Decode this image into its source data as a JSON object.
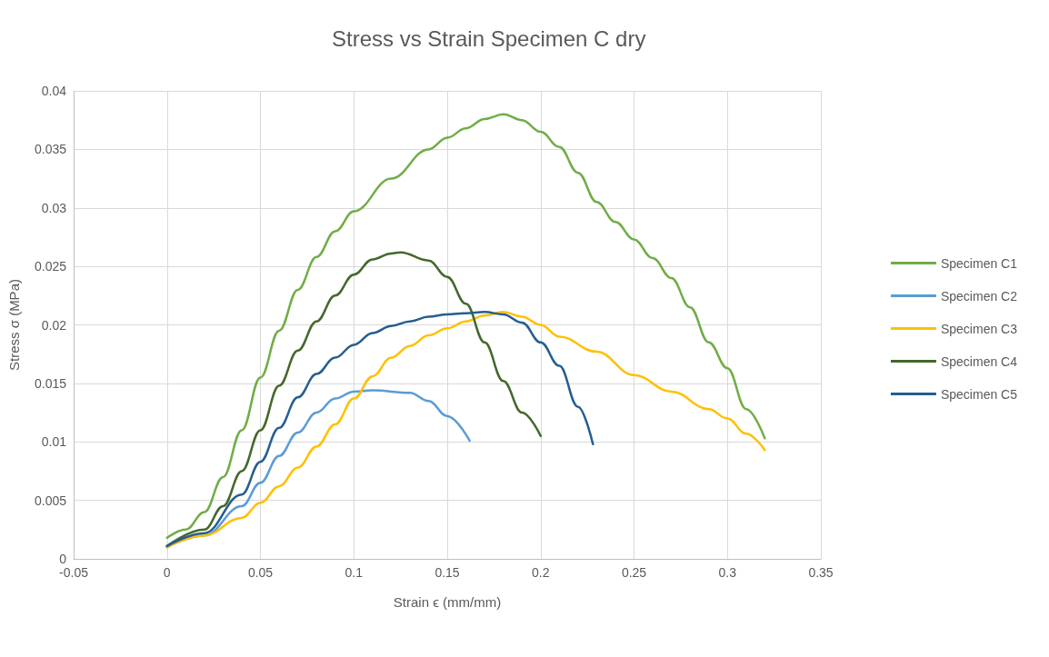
{
  "chart_data": {
    "type": "line",
    "title": "Stress vs Strain Specimen C dry",
    "xlabel": "Strain ϵ (mm/mm)",
    "ylabel": "Stress σ (MPa)",
    "xlim": [
      -0.05,
      0.35
    ],
    "xticks": [
      -0.05,
      0,
      0.05,
      0.1,
      0.15,
      0.2,
      0.25,
      0.3,
      0.35
    ],
    "ylim": [
      0,
      0.04
    ],
    "yticks": [
      0,
      0.005,
      0.01,
      0.015,
      0.02,
      0.025,
      0.03,
      0.035,
      0.04
    ],
    "grid": true,
    "legend": "right",
    "marker": "none",
    "line_style": "solid",
    "series": [
      {
        "name": "Specimen C1",
        "color": "#70ad47",
        "x": [
          0,
          0.01,
          0.02,
          0.03,
          0.04,
          0.05,
          0.06,
          0.07,
          0.08,
          0.09,
          0.1,
          0.12,
          0.14,
          0.15,
          0.16,
          0.17,
          0.18,
          0.19,
          0.2,
          0.21,
          0.22,
          0.23,
          0.24,
          0.25,
          0.26,
          0.27,
          0.28,
          0.29,
          0.3,
          0.31,
          0.32
        ],
        "values": [
          0.0018,
          0.0025,
          0.004,
          0.007,
          0.011,
          0.0155,
          0.0195,
          0.023,
          0.0258,
          0.028,
          0.0297,
          0.0325,
          0.035,
          0.036,
          0.0368,
          0.0376,
          0.038,
          0.0375,
          0.0365,
          0.0352,
          0.033,
          0.0305,
          0.0288,
          0.0273,
          0.0257,
          0.024,
          0.0215,
          0.0185,
          0.0163,
          0.0128,
          0.0103
        ]
      },
      {
        "name": "Specimen C2",
        "color": "#5b9bd5",
        "x": [
          0,
          0.02,
          0.04,
          0.05,
          0.06,
          0.07,
          0.08,
          0.09,
          0.1,
          0.11,
          0.13,
          0.14,
          0.15,
          0.162
        ],
        "values": [
          0.001,
          0.002,
          0.0045,
          0.0065,
          0.0088,
          0.0108,
          0.0125,
          0.0137,
          0.0143,
          0.0144,
          0.0142,
          0.0135,
          0.0122,
          0.0101
        ]
      },
      {
        "name": "Specimen C3",
        "color": "#ffc000",
        "x": [
          0,
          0.02,
          0.04,
          0.05,
          0.06,
          0.07,
          0.08,
          0.09,
          0.1,
          0.11,
          0.12,
          0.13,
          0.14,
          0.15,
          0.16,
          0.17,
          0.18,
          0.19,
          0.2,
          0.21,
          0.23,
          0.25,
          0.27,
          0.29,
          0.3,
          0.31,
          0.32
        ],
        "values": [
          0.001,
          0.002,
          0.0035,
          0.0048,
          0.0062,
          0.0078,
          0.0096,
          0.0115,
          0.0137,
          0.0156,
          0.0172,
          0.0182,
          0.0191,
          0.0197,
          0.0203,
          0.0208,
          0.0211,
          0.0207,
          0.02,
          0.019,
          0.0177,
          0.0157,
          0.0143,
          0.0128,
          0.012,
          0.0107,
          0.0093
        ]
      },
      {
        "name": "Specimen C4",
        "color": "#43682b",
        "x": [
          0,
          0.02,
          0.03,
          0.04,
          0.05,
          0.06,
          0.07,
          0.08,
          0.09,
          0.1,
          0.11,
          0.12,
          0.125,
          0.14,
          0.15,
          0.16,
          0.17,
          0.18,
          0.19,
          0.2
        ],
        "values": [
          0.0011,
          0.0025,
          0.0045,
          0.0075,
          0.011,
          0.0148,
          0.0178,
          0.0203,
          0.0225,
          0.0243,
          0.0256,
          0.0261,
          0.0262,
          0.0255,
          0.0241,
          0.0218,
          0.0185,
          0.0152,
          0.0125,
          0.0105
        ]
      },
      {
        "name": "Specimen C5",
        "color": "#255e91",
        "x": [
          0,
          0.02,
          0.04,
          0.05,
          0.06,
          0.07,
          0.08,
          0.09,
          0.1,
          0.11,
          0.12,
          0.13,
          0.14,
          0.15,
          0.16,
          0.17,
          0.18,
          0.19,
          0.2,
          0.21,
          0.22,
          0.228
        ],
        "values": [
          0.0011,
          0.0022,
          0.0055,
          0.0083,
          0.0112,
          0.0138,
          0.0158,
          0.0172,
          0.0183,
          0.0193,
          0.0199,
          0.0203,
          0.0207,
          0.0209,
          0.021,
          0.0211,
          0.0209,
          0.0202,
          0.0185,
          0.0165,
          0.013,
          0.0098
        ]
      }
    ]
  }
}
